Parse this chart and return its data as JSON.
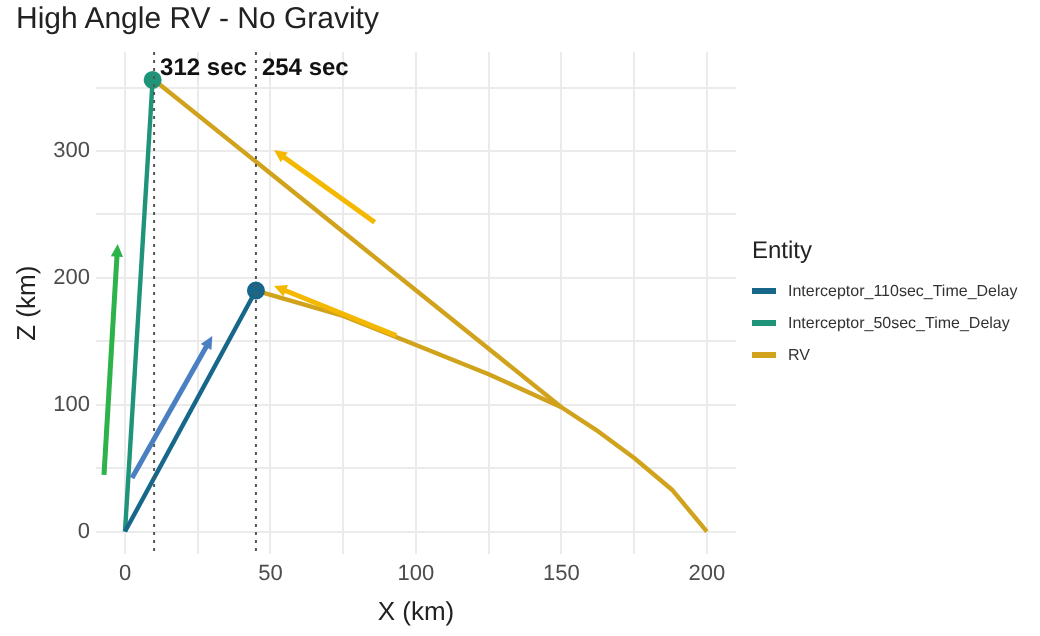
{
  "chart_data": {
    "type": "line",
    "title": "High Angle RV - No Gravity",
    "xlabel": "X (km)",
    "ylabel": "Z (km)",
    "legend_title": "Entity",
    "xlim": [
      -10,
      210
    ],
    "ylim": [
      -18,
      378
    ],
    "xticks": [
      0,
      {
        "value": 25,
        "label": null
      },
      50,
      {
        "value": 75,
        "label": null
      },
      100,
      {
        "value": 125,
        "label": null
      },
      150,
      {
        "value": 175,
        "label": null
      },
      200
    ],
    "yticks": [
      0,
      {
        "value": 50,
        "label": null
      },
      100,
      {
        "value": 150,
        "label": null
      },
      200,
      {
        "value": 250,
        "label": null
      },
      300,
      {
        "value": 350,
        "label": null
      }
    ],
    "grid": true,
    "legend": "right",
    "series": [
      {
        "name": "Interceptor_110sec_Time_Delay",
        "color": "#16678a",
        "x": [
          0,
          45
        ],
        "values": [
          0,
          190
        ]
      },
      {
        "name": "Interceptor_50sec_Time_Delay",
        "color": "#1f9478",
        "x": [
          0,
          9.5
        ],
        "values": [
          0,
          356
        ]
      },
      {
        "name": "RV",
        "color": "#d1a21c",
        "x": [
          10,
          150,
          162,
          175,
          188,
          200
        ],
        "values": [
          356,
          98,
          80,
          58,
          33,
          0
        ]
      },
      {
        "color": "#d1a21c",
        "x": [
          45,
          75,
          100,
          125,
          150
        ],
        "values": [
          190,
          170,
          147,
          124,
          98
        ]
      },
      {
        "type": "scatter",
        "marker": "circle",
        "color": "#16678a",
        "x": [
          45
        ],
        "values": [
          190
        ]
      },
      {
        "type": "scatter",
        "marker": "circle",
        "color": "#1f9478",
        "x": [
          9.5
        ],
        "values": [
          356
        ]
      }
    ],
    "ref_lines": [
      {
        "axis": "x",
        "value": 10,
        "label": "312 sec",
        "color": "#555555",
        "line_style": "dotted"
      },
      {
        "axis": "x",
        "value": 45,
        "label": "254 sec",
        "color": "#555555",
        "line_style": "dotted"
      }
    ]
  }
}
